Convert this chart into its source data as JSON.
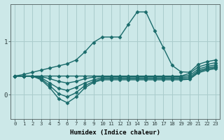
{
  "xlabel": "Humidex (Indice chaleur)",
  "background_color": "#cce8e8",
  "grid_color": "#aacccc",
  "line_color": "#1a6b6b",
  "xlim": [
    -0.5,
    23.5
  ],
  "ylim": [
    -0.45,
    1.7
  ],
  "yticks": [
    0,
    1
  ],
  "ytick_labels": [
    "0",
    "1"
  ],
  "xticks": [
    0,
    1,
    2,
    3,
    4,
    5,
    6,
    7,
    8,
    9,
    10,
    11,
    12,
    13,
    14,
    15,
    16,
    17,
    18,
    19,
    20,
    21,
    22,
    23
  ],
  "lines": [
    {
      "x": [
        0,
        1,
        2,
        3,
        4,
        5,
        6,
        7,
        8,
        9,
        10,
        11,
        12,
        13,
        14,
        15,
        16,
        17,
        18,
        19,
        20,
        21,
        22,
        23
      ],
      "y": [
        0.35,
        0.38,
        0.42,
        0.46,
        0.5,
        0.54,
        0.58,
        0.65,
        0.8,
        0.98,
        1.08,
        1.08,
        1.08,
        1.32,
        1.55,
        1.55,
        1.2,
        0.88,
        0.55,
        0.43,
        0.42,
        0.57,
        0.62,
        0.65
      ],
      "marker": "D",
      "markersize": 2.5,
      "linewidth": 1.0
    },
    {
      "x": [
        0,
        1,
        2,
        3,
        4,
        5,
        6,
        7,
        8,
        9,
        10,
        11,
        12,
        13,
        14,
        15,
        16,
        17,
        18,
        19,
        20,
        21,
        22,
        23
      ],
      "y": [
        0.35,
        0.35,
        0.35,
        0.35,
        0.35,
        0.35,
        0.35,
        0.35,
        0.35,
        0.35,
        0.35,
        0.35,
        0.35,
        0.35,
        0.35,
        0.35,
        0.35,
        0.35,
        0.35,
        0.35,
        0.4,
        0.52,
        0.57,
        0.6
      ],
      "marker": "D",
      "markersize": 2.5,
      "linewidth": 1.0
    },
    {
      "x": [
        0,
        1,
        2,
        3,
        4,
        5,
        6,
        7,
        8,
        9,
        10,
        11,
        12,
        13,
        14,
        15,
        16,
        17,
        18,
        19,
        20,
        21,
        22,
        23
      ],
      "y": [
        0.35,
        0.35,
        0.35,
        0.34,
        0.3,
        0.25,
        0.22,
        0.25,
        0.3,
        0.33,
        0.34,
        0.34,
        0.34,
        0.34,
        0.34,
        0.34,
        0.34,
        0.34,
        0.34,
        0.34,
        0.36,
        0.48,
        0.53,
        0.56
      ],
      "marker": "D",
      "markersize": 2.5,
      "linewidth": 1.0
    },
    {
      "x": [
        0,
        1,
        2,
        3,
        4,
        5,
        6,
        7,
        8,
        9,
        10,
        11,
        12,
        13,
        14,
        15,
        16,
        17,
        18,
        19,
        20,
        21,
        22,
        23
      ],
      "y": [
        0.35,
        0.35,
        0.35,
        0.32,
        0.22,
        0.12,
        0.08,
        0.14,
        0.22,
        0.28,
        0.32,
        0.32,
        0.32,
        0.32,
        0.32,
        0.32,
        0.32,
        0.32,
        0.32,
        0.32,
        0.33,
        0.45,
        0.5,
        0.53
      ],
      "marker": "D",
      "markersize": 2.5,
      "linewidth": 1.0
    },
    {
      "x": [
        0,
        1,
        2,
        3,
        4,
        5,
        6,
        7,
        8,
        9,
        10,
        11,
        12,
        13,
        14,
        15,
        16,
        17,
        18,
        19,
        20,
        21,
        22,
        23
      ],
      "y": [
        0.35,
        0.35,
        0.35,
        0.3,
        0.17,
        0.02,
        -0.04,
        0.04,
        0.17,
        0.25,
        0.3,
        0.3,
        0.3,
        0.3,
        0.3,
        0.3,
        0.3,
        0.3,
        0.3,
        0.3,
        0.3,
        0.43,
        0.48,
        0.51
      ],
      "marker": "D",
      "markersize": 2.5,
      "linewidth": 1.0
    },
    {
      "x": [
        0,
        1,
        2,
        3,
        4,
        5,
        6,
        7,
        8,
        9,
        10,
        11,
        12,
        13,
        14,
        15,
        16,
        17,
        18,
        19,
        20,
        21,
        22,
        23
      ],
      "y": [
        0.35,
        0.35,
        0.35,
        0.28,
        0.13,
        -0.07,
        -0.15,
        -0.04,
        0.13,
        0.23,
        0.28,
        0.28,
        0.28,
        0.28,
        0.28,
        0.28,
        0.28,
        0.28,
        0.28,
        0.28,
        0.29,
        0.41,
        0.46,
        0.49
      ],
      "marker": "D",
      "markersize": 2.5,
      "linewidth": 1.0
    }
  ]
}
